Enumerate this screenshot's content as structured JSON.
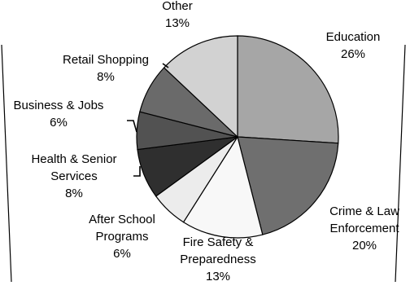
{
  "chart_data": {
    "type": "pie",
    "title": "",
    "series": [
      {
        "values": [
          26,
          20,
          13,
          6,
          8,
          6,
          8,
          13
        ]
      }
    ],
    "slices": [
      {
        "name": "Education",
        "label_lines": [
          "Education",
          "26%"
        ],
        "value": 26,
        "color": "#a6a6a6"
      },
      {
        "name": "Crime & Law Enforcement",
        "label_lines": [
          "Crime & Law",
          "Enforcement",
          "20%"
        ],
        "value": 20,
        "color": "#6f6f6f"
      },
      {
        "name": "Fire Safety & Preparedness",
        "label_lines": [
          "Fire Safety &",
          "Preparedness",
          "13%"
        ],
        "value": 13,
        "color": "#f8f8f8"
      },
      {
        "name": "After School Programs",
        "label_lines": [
          "After School",
          "Programs",
          "6%"
        ],
        "value": 6,
        "color": "#ececec"
      },
      {
        "name": "Health & Senior Services",
        "label_lines": [
          "Health & Senior",
          "Services",
          "8%"
        ],
        "value": 8,
        "color": "#2f2f2f"
      },
      {
        "name": "Business & Jobs",
        "label_lines": [
          "Business & Jobs",
          "6%"
        ],
        "value": 6,
        "color": "#525252"
      },
      {
        "name": "Retail Shopping",
        "label_lines": [
          "Retail Shopping",
          "8%"
        ],
        "value": 8,
        "color": "#6a6a6a"
      },
      {
        "name": "Other",
        "label_lines": [
          "Other",
          "13%"
        ],
        "value": 13,
        "color": "#d2d2d2"
      }
    ],
    "legend": "none",
    "start_angle": "12 o'clock",
    "direction": "clockwise"
  }
}
